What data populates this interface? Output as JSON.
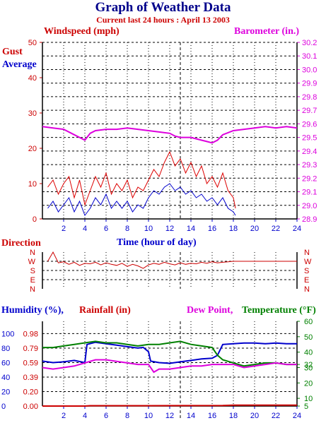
{
  "header": {
    "title": "Graph of Weather Data",
    "subtitle": "Current last 24 hours : April 13 2003"
  },
  "colors": {
    "gust": "#dd0000",
    "average": "#0000cc",
    "barometer": "#dd00dd",
    "direction": "#cc0000",
    "humidity": "#0000cc",
    "rainfall": "#cc0000",
    "dewpoint": "#dd00dd",
    "temperature": "#008000",
    "grid": "#000000",
    "axis_blue": "#0000cc"
  },
  "chart_data": [
    {
      "type": "line",
      "name": "wind-barometer",
      "left_axis_label": "Windspeed (mph)",
      "right_axis_label": "Barometer (in.)",
      "series_labels": [
        "Gust",
        "Average"
      ],
      "x_label": "Time (hour of day)",
      "x_ticks": [
        2,
        4,
        6,
        8,
        10,
        12,
        14,
        16,
        18,
        20,
        22,
        24
      ],
      "x_range": [
        0,
        24
      ],
      "left_ticks": [
        0,
        10,
        20,
        30,
        40,
        50
      ],
      "left_range": [
        0,
        50
      ],
      "right_ticks": [
        "28.9",
        "29.0",
        "29.1",
        "29.2",
        "29.3",
        "29.4",
        "29.5",
        "29.6",
        "29.7",
        "29.8",
        "29.9",
        "30.0",
        "30.1",
        "30.2"
      ],
      "right_range": [
        28.9,
        30.2
      ],
      "current_time_marker": 13,
      "series": [
        {
          "name": "Gust",
          "axis": "left",
          "x": [
            0.5,
            1,
            1.5,
            2,
            2.5,
            3,
            3.5,
            4,
            4.5,
            5,
            5.5,
            6,
            6.5,
            7,
            7.5,
            8,
            8.5,
            9,
            9.5,
            10,
            10.5,
            11,
            11.5,
            12,
            12.5,
            13,
            13.5,
            14,
            14.5,
            15,
            15.5,
            16,
            16.5,
            17,
            17.5,
            18,
            18.2
          ],
          "y": [
            9,
            11,
            7,
            10,
            12,
            6,
            11,
            4,
            8,
            12,
            9,
            13,
            7,
            10,
            8,
            11,
            6,
            9,
            8,
            11,
            14,
            12,
            16,
            19,
            15,
            17,
            13,
            16,
            12,
            15,
            10,
            12,
            9,
            13,
            8,
            6,
            3
          ]
        },
        {
          "name": "Average",
          "axis": "left",
          "x": [
            0.5,
            1,
            1.5,
            2,
            2.5,
            3,
            3.5,
            4,
            4.5,
            5,
            5.5,
            6,
            6.5,
            7,
            7.5,
            8,
            8.5,
            9,
            9.5,
            10,
            10.5,
            11,
            11.5,
            12,
            12.5,
            13,
            13.5,
            14,
            14.5,
            15,
            15.5,
            16,
            16.5,
            17,
            17.5,
            18,
            18.2
          ],
          "y": [
            3,
            5,
            2,
            4,
            6,
            2,
            5,
            1,
            3,
            6,
            4,
            7,
            3,
            5,
            3,
            5,
            2,
            4,
            3,
            6,
            8,
            7,
            9,
            10,
            8,
            9,
            7,
            8,
            6,
            7,
            5,
            6,
            4,
            6,
            3,
            2,
            1
          ]
        },
        {
          "name": "Barometer",
          "axis": "right",
          "x": [
            0,
            1,
            2,
            3,
            3.5,
            4,
            4.5,
            5,
            6,
            7,
            8,
            9,
            10,
            11,
            12,
            12.5,
            13,
            14,
            15,
            15.5,
            16,
            16.5,
            17,
            18,
            19,
            20,
            21,
            22,
            23,
            24
          ],
          "y": [
            29.58,
            29.57,
            29.56,
            29.52,
            29.5,
            29.48,
            29.53,
            29.55,
            29.56,
            29.56,
            29.57,
            29.56,
            29.55,
            29.54,
            29.53,
            29.51,
            29.5,
            29.5,
            29.48,
            29.47,
            29.46,
            29.48,
            29.52,
            29.55,
            29.56,
            29.57,
            29.58,
            29.57,
            29.58,
            29.57
          ]
        }
      ]
    },
    {
      "type": "line",
      "name": "direction",
      "axis_label": "Direction",
      "y_categories": [
        "N",
        "W",
        "S",
        "E",
        "N"
      ],
      "x_range": [
        0,
        24
      ],
      "series": [
        {
          "name": "Direction",
          "x": [
            0.5,
            1,
            1.5,
            2,
            2.5,
            3,
            3.5,
            4,
            4.5,
            5,
            5.5,
            6,
            6.5,
            7,
            7.5,
            8,
            8.5,
            9,
            9.5,
            10,
            10.5,
            11,
            11.5,
            12,
            12.5,
            13,
            13.5,
            14,
            14.5,
            15,
            15.5,
            16,
            16.5,
            17,
            17.5,
            18,
            19,
            20,
            21,
            22,
            23,
            24
          ],
          "y": [
            270,
            285,
            255,
            265,
            240,
            260,
            230,
            250,
            245,
            260,
            235,
            255,
            240,
            230,
            250,
            220,
            240,
            225,
            200,
            235,
            250,
            240,
            260,
            245,
            235,
            255,
            240,
            250,
            245,
            260,
            250,
            265,
            255,
            260,
            265,
            270,
            270,
            270,
            270,
            270,
            270,
            270
          ]
        }
      ]
    },
    {
      "type": "line",
      "name": "humidity-rain-temp",
      "labels": [
        "Humidity (%),",
        "Rainfall (in)",
        "Dew Point,",
        "Temperature (°F)"
      ],
      "x_ticks": [
        2,
        4,
        6,
        8,
        10,
        12,
        14,
        16,
        18,
        20,
        22,
        24
      ],
      "x_range": [
        0,
        24
      ],
      "humidity_ticks": [
        0,
        20,
        40,
        60,
        80,
        100
      ],
      "rain_ticks": [
        "0.00",
        "0.20",
        "0.39",
        "0.59",
        "0.79",
        "0.98"
      ],
      "temp_ticks": [
        5,
        10,
        20,
        30,
        32,
        40,
        50,
        60
      ],
      "humidity_range": [
        0,
        117
      ],
      "temp_range": [
        5,
        60
      ],
      "series": [
        {
          "name": "Humidity",
          "axis": "humidity",
          "x": [
            0,
            1,
            2,
            3,
            4,
            4.2,
            5,
            6,
            7,
            8,
            9,
            9.5,
            10,
            10.2,
            11,
            12,
            13,
            14,
            15,
            16,
            16.5,
            17,
            18,
            19,
            20,
            21,
            22,
            23,
            24
          ],
          "y": [
            62,
            60,
            61,
            63,
            60,
            85,
            88,
            86,
            84,
            82,
            80,
            81,
            75,
            62,
            60,
            59,
            61,
            63,
            65,
            66,
            70,
            85,
            86,
            87,
            87,
            86,
            87,
            86,
            86
          ]
        },
        {
          "name": "Temperature",
          "axis": "temp",
          "x": [
            0,
            1,
            2,
            3,
            4,
            5,
            6,
            7,
            8,
            9,
            10,
            11,
            12,
            13,
            14,
            15,
            16,
            16.5,
            17,
            18,
            19,
            20,
            21,
            22,
            23,
            24
          ],
          "y": [
            43,
            43,
            44,
            45,
            46,
            47,
            46,
            46,
            45,
            44,
            45,
            45,
            46,
            47,
            45,
            44,
            43,
            38,
            35,
            33,
            31,
            32,
            33,
            33,
            32,
            32
          ]
        },
        {
          "name": "Dew Point",
          "axis": "temp",
          "x": [
            0,
            1,
            2,
            3,
            4,
            5,
            6,
            7,
            8,
            9,
            10,
            10.5,
            11,
            12,
            13,
            14,
            15,
            16,
            17,
            18,
            19,
            20,
            21,
            22,
            23,
            24
          ],
          "y": [
            30,
            29,
            30,
            31,
            33,
            35,
            35,
            34,
            33,
            32,
            32,
            27,
            29,
            29,
            30,
            31,
            31,
            32,
            32,
            32,
            30,
            31,
            32,
            33,
            32,
            32
          ]
        },
        {
          "name": "Rainfall",
          "axis": "humidity",
          "x": [
            0,
            4,
            4.5,
            10,
            17,
            18,
            24
          ],
          "y": [
            0,
            0,
            0.5,
            0.5,
            0.8,
            1.2,
            1.2
          ]
        }
      ]
    }
  ]
}
